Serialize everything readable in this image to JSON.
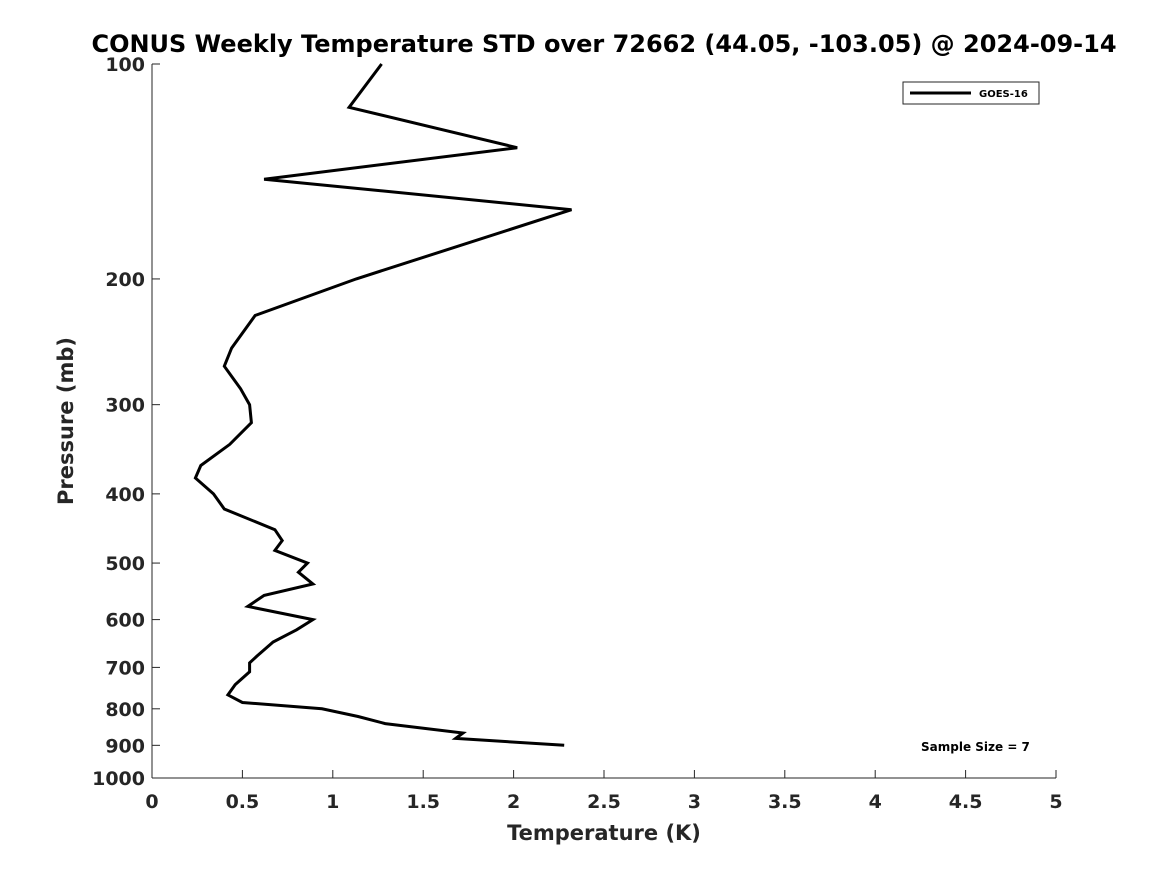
{
  "chart_data": {
    "type": "line",
    "title": "CONUS Weekly Temperature STD over 72662 (44.05, -103.05) @ 2024-09-14",
    "xlabel": "Temperature (K)",
    "ylabel": "Pressure (mb)",
    "xlim": [
      0,
      5
    ],
    "ylim": [
      1000,
      100
    ],
    "y_scale": "log",
    "y_reversed": true,
    "xticks": [
      0,
      0.5,
      1,
      1.5,
      2,
      2.5,
      3,
      3.5,
      4,
      4.5,
      5
    ],
    "xtick_labels": [
      "0",
      "0.5",
      "1",
      "1.5",
      "2",
      "2.5",
      "3",
      "3.5",
      "4",
      "4.5",
      "5"
    ],
    "yticks": [
      100,
      200,
      300,
      400,
      500,
      600,
      700,
      800,
      900,
      1000
    ],
    "ytick_labels": [
      "100",
      "200",
      "300",
      "400",
      "500",
      "600",
      "700",
      "800",
      "900",
      "1000"
    ],
    "grid": false,
    "legend": {
      "placement": "top-right",
      "entries": [
        "GOES-16"
      ]
    },
    "annotation": "Sample Size = 7",
    "series": [
      {
        "name": "GOES-16",
        "color": "#000000",
        "points": [
          {
            "x": 1.27,
            "y": 100
          },
          {
            "x": 1.09,
            "y": 115
          },
          {
            "x": 2.02,
            "y": 131
          },
          {
            "x": 0.62,
            "y": 145
          },
          {
            "x": 2.32,
            "y": 160
          },
          {
            "x": 1.13,
            "y": 200
          },
          {
            "x": 0.57,
            "y": 225
          },
          {
            "x": 0.44,
            "y": 250
          },
          {
            "x": 0.4,
            "y": 265
          },
          {
            "x": 0.49,
            "y": 285
          },
          {
            "x": 0.54,
            "y": 300
          },
          {
            "x": 0.55,
            "y": 318
          },
          {
            "x": 0.43,
            "y": 341
          },
          {
            "x": 0.27,
            "y": 365
          },
          {
            "x": 0.24,
            "y": 380
          },
          {
            "x": 0.34,
            "y": 400
          },
          {
            "x": 0.4,
            "y": 420
          },
          {
            "x": 0.68,
            "y": 449
          },
          {
            "x": 0.72,
            "y": 465
          },
          {
            "x": 0.68,
            "y": 480
          },
          {
            "x": 0.86,
            "y": 500
          },
          {
            "x": 0.81,
            "y": 515
          },
          {
            "x": 0.89,
            "y": 535
          },
          {
            "x": 0.62,
            "y": 555
          },
          {
            "x": 0.53,
            "y": 575
          },
          {
            "x": 0.89,
            "y": 600
          },
          {
            "x": 0.8,
            "y": 620
          },
          {
            "x": 0.67,
            "y": 645
          },
          {
            "x": 0.58,
            "y": 675
          },
          {
            "x": 0.54,
            "y": 690
          },
          {
            "x": 0.54,
            "y": 710
          },
          {
            "x": 0.46,
            "y": 740
          },
          {
            "x": 0.42,
            "y": 765
          },
          {
            "x": 0.5,
            "y": 784
          },
          {
            "x": 0.94,
            "y": 800
          },
          {
            "x": 1.14,
            "y": 820
          },
          {
            "x": 1.29,
            "y": 839
          },
          {
            "x": 1.72,
            "y": 865
          },
          {
            "x": 1.68,
            "y": 880
          },
          {
            "x": 2.28,
            "y": 900
          }
        ]
      }
    ]
  }
}
